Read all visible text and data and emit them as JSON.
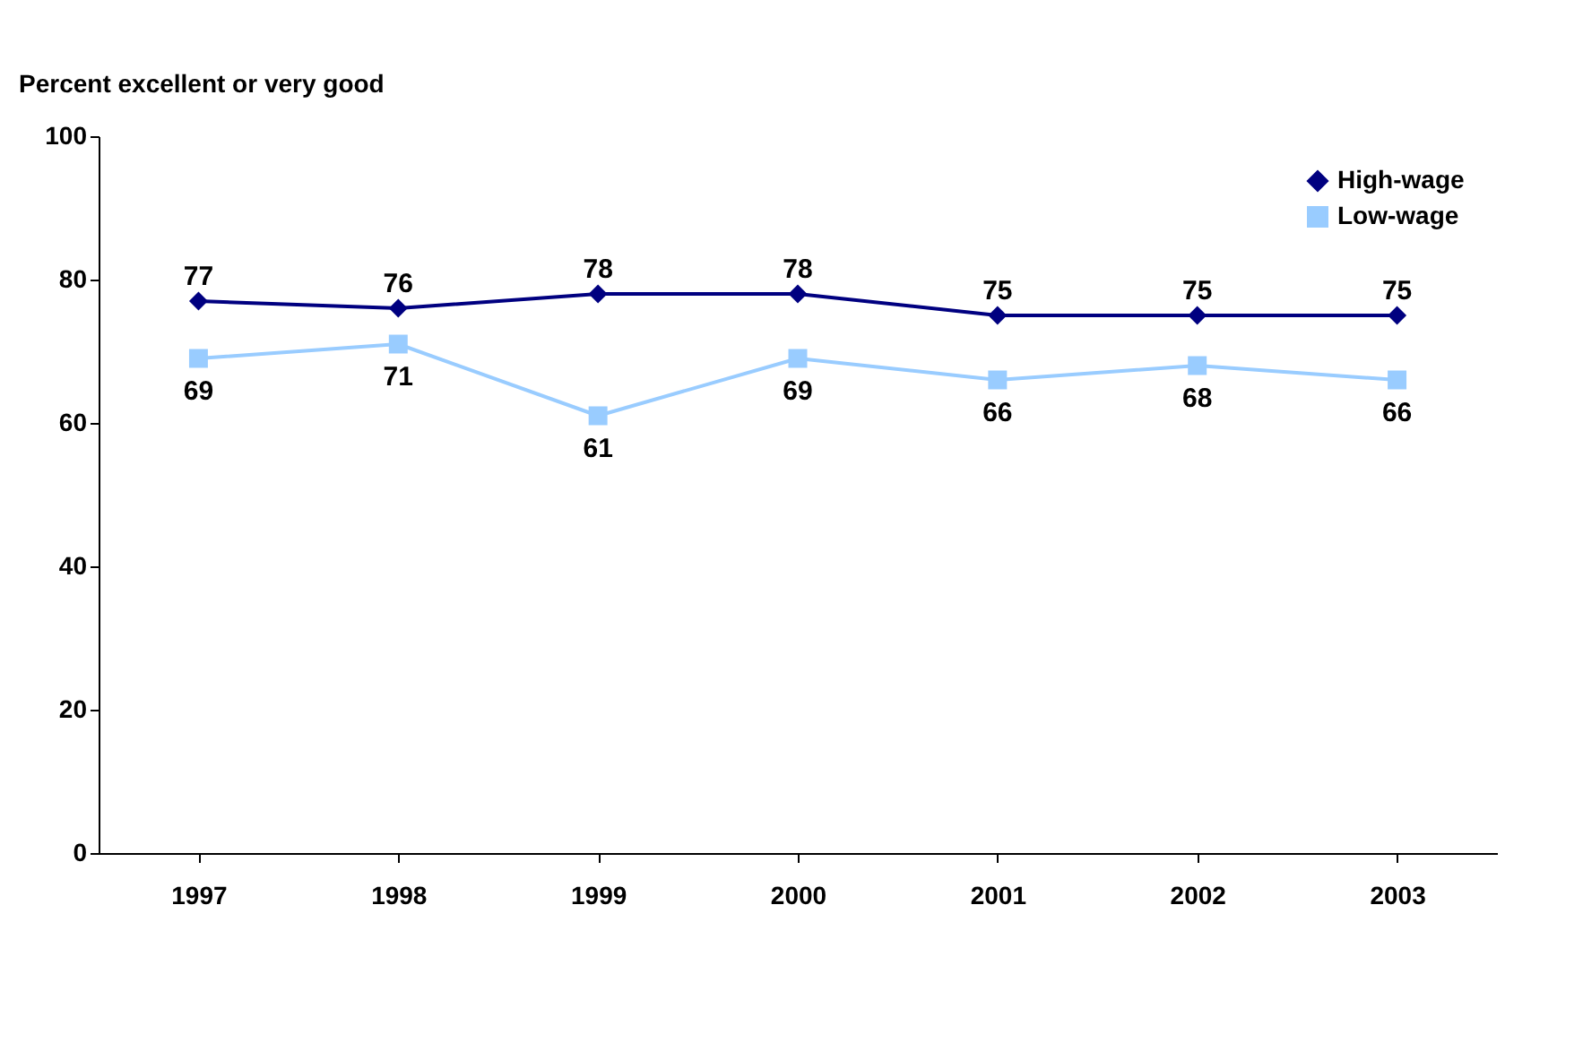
{
  "chart_data": {
    "type": "line",
    "ylabel": "Percent excellent or very good",
    "categories": [
      "1997",
      "1998",
      "1999",
      "2000",
      "2001",
      "2002",
      "2003"
    ],
    "series": [
      {
        "name": "High-wage",
        "color": "#000080",
        "marker": "diamond",
        "values": [
          77,
          76,
          78,
          78,
          75,
          75,
          75
        ]
      },
      {
        "name": "Low-wage",
        "color": "#99ccff",
        "marker": "square",
        "values": [
          69,
          71,
          61,
          69,
          66,
          68,
          66
        ]
      }
    ],
    "ylim": [
      0,
      100
    ],
    "yticks": [
      0,
      20,
      40,
      60,
      80,
      100
    ],
    "grid": false,
    "legend": "top right",
    "data_labels": true,
    "line_style": "solid"
  }
}
